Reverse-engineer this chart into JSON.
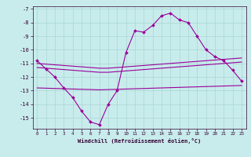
{
  "hours": [
    0,
    1,
    2,
    3,
    4,
    5,
    6,
    7,
    8,
    9,
    10,
    11,
    12,
    13,
    14,
    15,
    16,
    17,
    18,
    19,
    20,
    21,
    22,
    23
  ],
  "line_main": [
    -10.8,
    -11.4,
    -12.0,
    -12.8,
    -13.5,
    -14.5,
    -15.3,
    -15.5,
    -14.0,
    -13.0,
    -10.2,
    -8.6,
    -8.7,
    -8.2,
    -7.5,
    -7.3,
    -7.8,
    -8.0,
    -9.0,
    -10.0,
    -10.5,
    -10.8,
    -11.5,
    -12.3
  ],
  "line_straight1": [
    -11.0,
    -11.05,
    -11.1,
    -11.15,
    -11.2,
    -11.25,
    -11.3,
    -11.35,
    -11.35,
    -11.3,
    -11.25,
    -11.2,
    -11.15,
    -11.1,
    -11.05,
    -11.0,
    -10.95,
    -10.9,
    -10.85,
    -10.8,
    -10.75,
    -10.7,
    -10.65,
    -10.6
  ],
  "line_straight2": [
    -11.3,
    -11.35,
    -11.4,
    -11.45,
    -11.5,
    -11.55,
    -11.6,
    -11.65,
    -11.65,
    -11.6,
    -11.55,
    -11.5,
    -11.45,
    -11.4,
    -11.35,
    -11.3,
    -11.25,
    -11.2,
    -11.15,
    -11.1,
    -11.05,
    -11.0,
    -10.95,
    -10.9
  ],
  "line_bottom": [
    -12.8,
    -12.82,
    -12.84,
    -12.86,
    -12.88,
    -12.9,
    -12.92,
    -12.94,
    -12.92,
    -12.9,
    -12.88,
    -12.86,
    -12.84,
    -12.82,
    -12.8,
    -12.78,
    -12.76,
    -12.74,
    -12.72,
    -12.7,
    -12.68,
    -12.66,
    -12.64,
    -12.62
  ],
  "background_color": "#c8ecec",
  "grid_color": "#aad4d4",
  "line_color": "#990099",
  "xlabel": "Windchill (Refroidissement éolien,°C)",
  "ylim": [
    -15.8,
    -6.8
  ],
  "xlim": [
    -0.5,
    23.5
  ],
  "yticks": [
    -7,
    -8,
    -9,
    -10,
    -11,
    -12,
    -13,
    -14,
    -15
  ],
  "xticks": [
    0,
    1,
    2,
    3,
    4,
    5,
    6,
    7,
    8,
    9,
    10,
    11,
    12,
    13,
    14,
    15,
    16,
    17,
    18,
    19,
    20,
    21,
    22,
    23
  ]
}
